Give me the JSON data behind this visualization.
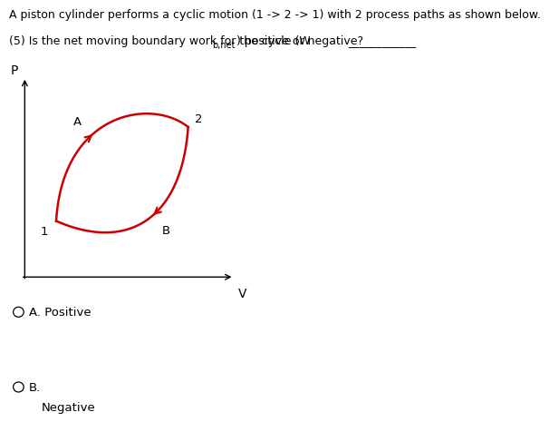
{
  "title_line1": "A piston cylinder performs a cyclic motion (1 -> 2 -> 1) with 2 process paths as shown below.",
  "question_prefix": "(5) Is the net moving boundary work for the cycle (W",
  "question_sub": "b,net",
  "question_suffix": ") positive or negative?",
  "xlabel": "V",
  "ylabel": "P",
  "curve_color": "#cc0000",
  "p1": [
    0.15,
    0.28
  ],
  "p2": [
    0.78,
    0.75
  ],
  "cp_upper1": [
    0.18,
    0.82
  ],
  "cp_upper2": [
    0.6,
    0.9
  ],
  "cp_lower1": [
    0.75,
    0.3
  ],
  "cp_lower2": [
    0.5,
    0.12
  ],
  "arrow_A_idx": 0.38,
  "arrow_B_idx": 0.45,
  "label_1": "1",
  "label_2": "2",
  "label_A": "A",
  "label_B": "B",
  "option_A_text": "A. Positive",
  "option_B_label": "B.",
  "option_B_subtext": "Negative",
  "background_color": "#ffffff",
  "text_color": "#000000",
  "font_size_title": 9.0,
  "font_size_axis": 10,
  "font_size_option": 9.5
}
